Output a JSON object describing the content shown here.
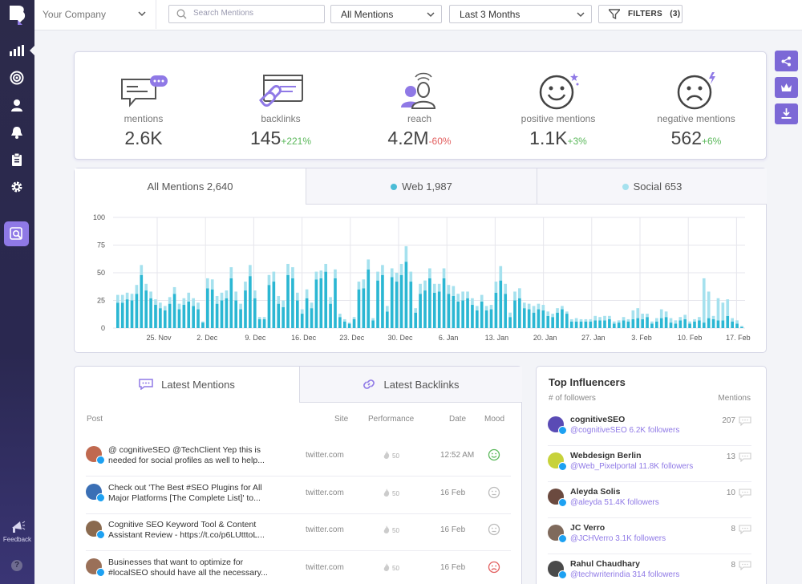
{
  "topbar": {
    "company": "Your Company",
    "search_placeholder": "Search Mentions",
    "mentions_filter": "All Mentions",
    "period_filter": "Last 3 Months",
    "filters_label": "FILTERS",
    "filters_count": "(3)"
  },
  "sidebar": {
    "feedback_label": "Feedback",
    "help_label": "?"
  },
  "stats": [
    {
      "label": "mentions",
      "value": "2.6K",
      "change": "",
      "trend": "none",
      "icon": "chat-bubbles-icon"
    },
    {
      "label": "backlinks",
      "value": "145",
      "change": "+221%",
      "trend": "pos",
      "icon": "link-window-icon"
    },
    {
      "label": "reach",
      "value": "4.2M",
      "change": "-60%",
      "trend": "neg",
      "icon": "people-reach-icon"
    },
    {
      "label": "positive mentions",
      "value": "1.1K",
      "change": "+3%",
      "trend": "pos",
      "icon": "smile-icon"
    },
    {
      "label": "negative mentions",
      "value": "562",
      "change": "+6%",
      "trend": "pos",
      "icon": "sad-icon"
    }
  ],
  "chart_tabs": [
    {
      "label": "All Mentions 2,640"
    },
    {
      "label": "Web 1,987",
      "color": "#4bbcd6"
    },
    {
      "label": "Social 653",
      "color": "#a5e1ee"
    }
  ],
  "chart_data": {
    "type": "bar",
    "stacked": true,
    "ylim": [
      0,
      100
    ],
    "yticks": [
      0,
      25,
      50,
      75,
      100
    ],
    "xticks": [
      "25. Nov",
      "2. Dec",
      "9. Dec",
      "16. Dec",
      "23. Dec",
      "30. Dec",
      "6. Jan",
      "13. Jan",
      "20. Jan",
      "27. Jan",
      "3. Feb",
      "10. Feb",
      "17. Feb"
    ],
    "series": [
      {
        "name": "Web",
        "color": "#2bb7d3",
        "values": [
          23,
          23,
          26,
          25,
          31,
          48,
          34,
          27,
          21,
          18,
          16,
          22,
          31,
          17,
          21,
          24,
          20,
          17,
          5,
          36,
          35,
          22,
          25,
          27,
          45,
          25,
          17,
          34,
          47,
          27,
          8,
          8,
          39,
          42,
          22,
          19,
          48,
          45,
          25,
          13,
          27,
          18,
          44,
          45,
          51,
          22,
          45,
          10,
          6,
          4,
          8,
          35,
          36,
          53,
          7,
          43,
          48,
          15,
          46,
          42,
          48,
          60,
          42,
          14,
          31,
          34,
          45,
          32,
          33,
          45,
          31,
          29,
          24,
          25,
          27,
          21,
          16,
          24,
          16,
          17,
          32,
          43,
          31,
          10,
          25,
          27,
          18,
          17,
          14,
          17,
          16,
          11,
          10,
          14,
          17,
          13,
          6,
          6,
          6,
          6,
          6,
          7,
          7,
          7,
          8,
          4,
          5,
          7,
          6,
          8,
          9,
          8,
          10,
          4,
          6,
          9,
          10,
          5,
          4,
          7,
          8,
          4,
          6,
          7,
          5,
          9,
          8,
          7,
          7,
          11,
          6,
          4,
          1
        ]
      },
      {
        "name": "Social",
        "color": "#a5e1ee",
        "values": [
          7,
          7,
          6,
          6,
          8,
          9,
          6,
          6,
          5,
          5,
          4,
          6,
          6,
          5,
          6,
          8,
          7,
          6,
          1,
          9,
          9,
          7,
          7,
          7,
          10,
          8,
          5,
          8,
          10,
          7,
          2,
          2,
          9,
          9,
          7,
          6,
          10,
          10,
          7,
          4,
          8,
          5,
          7,
          7,
          7,
          6,
          8,
          3,
          2,
          1,
          2,
          7,
          8,
          9,
          2,
          8,
          9,
          5,
          8,
          8,
          10,
          14,
          9,
          4,
          9,
          9,
          9,
          8,
          7,
          9,
          8,
          9,
          7,
          8,
          6,
          6,
          4,
          6,
          4,
          4,
          10,
          13,
          9,
          4,
          8,
          9,
          5,
          5,
          6,
          5,
          5,
          4,
          3,
          4,
          3,
          2,
          2,
          3,
          2,
          2,
          2,
          4,
          3,
          4,
          3,
          2,
          2,
          3,
          2,
          8,
          9,
          5,
          3,
          2,
          3,
          8,
          5,
          4,
          3,
          3,
          4,
          2,
          2,
          3,
          40,
          24,
          3,
          20,
          16,
          15,
          3,
          3,
          1
        ]
      }
    ]
  },
  "mention_tabs": {
    "latest_mentions": "Latest Mentions",
    "latest_backlinks": "Latest Backlinks"
  },
  "mention_headers": {
    "post": "Post",
    "site": "Site",
    "performance": "Performance",
    "date": "Date",
    "mood": "Mood"
  },
  "mention_rows": [
    {
      "text": "@ cognitiveSEO @TechClient Yep this is needed for social profiles as well to help...",
      "site": "twitter.com",
      "perf": "50",
      "date": "12:52 AM",
      "mood": "positive",
      "avatar_color": "#c0694f"
    },
    {
      "text": "Check out 'The Best #SEO Plugins for All Major Platforms [The Complete List]' to...",
      "site": "twitter.com",
      "perf": "50",
      "date": "16 Feb",
      "mood": "neutral",
      "avatar_color": "#3a6fb5"
    },
    {
      "text": "Cognitive SEO Keyword Tool & Content Assistant Review - https://t.co/p6LUtttoL...",
      "site": "twitter.com",
      "perf": "50",
      "date": "16 Feb",
      "mood": "neutral",
      "avatar_color": "#8a6a4f"
    },
    {
      "text": "Businesses that want to optimize for #localSEO should have all the necessary...",
      "site": "twitter.com",
      "perf": "50",
      "date": "16 Feb",
      "mood": "negative",
      "avatar_color": "#9a7058"
    }
  ],
  "influencers": {
    "title": "Top Influencers",
    "followers_label": "# of followers",
    "mentions_label": "Mentions",
    "rows": [
      {
        "name": "cognitiveSEO",
        "handle": "@cognitiveSEO 6.2K followers",
        "count": "207",
        "avatar_color": "#5a4bb5"
      },
      {
        "name": "Webdesign Berlin",
        "handle": "@Web_Pixelportal 11.8K followers",
        "count": "13",
        "avatar_color": "#c7d23b"
      },
      {
        "name": "Aleyda Solis",
        "handle": "@aleyda 51.4K followers",
        "count": "10",
        "avatar_color": "#6b4a3f"
      },
      {
        "name": "JC Verro",
        "handle": "@JCHVerro 3.1K followers",
        "count": "8",
        "avatar_color": "#7f6a5c"
      },
      {
        "name": "Rahul Chaudhary",
        "handle": "@techwriterindia 314 followers",
        "count": "8",
        "avatar_color": "#4a4a4a"
      }
    ]
  }
}
